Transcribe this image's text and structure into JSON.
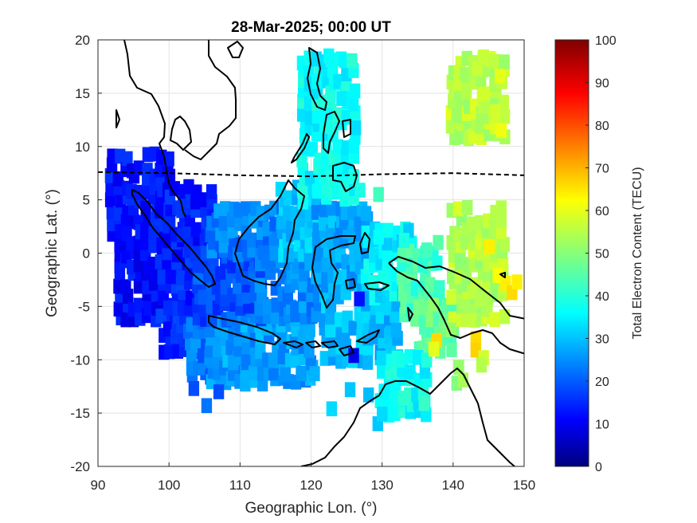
{
  "chart_data": {
    "type": "heatmap",
    "title": "28-Mar-2025; 00:00 UT",
    "xlabel": "Geographic Lon. (°)",
    "ylabel": "Geographic Lat. (°)",
    "xlim": [
      90,
      150
    ],
    "ylim": [
      -20,
      20
    ],
    "xticks": [
      "90",
      "100",
      "110",
      "120",
      "130",
      "140",
      "150"
    ],
    "yticks": [
      "20",
      "15",
      "10",
      "5",
      "0",
      "-5",
      "-10",
      "-15",
      "-20"
    ],
    "grid": true,
    "colorbar": {
      "label": "Total Electron Content (TECU)",
      "range": [
        0,
        100
      ],
      "ticks": [
        "100",
        "90",
        "80",
        "70",
        "60",
        "50",
        "40",
        "30",
        "20",
        "10",
        "0"
      ],
      "colormap": "jet"
    },
    "magnetic_equator": [
      [
        90,
        7.6
      ],
      [
        100,
        7.5
      ],
      [
        110,
        7.3
      ],
      [
        120,
        7.2
      ],
      [
        130,
        7.4
      ],
      [
        140,
        7.5
      ],
      [
        150,
        7.3
      ]
    ],
    "regions": [
      {
        "lon": [
          92,
          100
        ],
        "lat": [
          2,
          9.5
        ],
        "tec": 14
      },
      {
        "lon": [
          93,
          102
        ],
        "lat": [
          -6,
          2
        ],
        "tec": 13
      },
      {
        "lon": [
          99,
          106
        ],
        "lat": [
          -9,
          0
        ],
        "tec": 16
      },
      {
        "lon": [
          100,
          106
        ],
        "lat": [
          0,
          6
        ],
        "tec": 15
      },
      {
        "lon": [
          103,
          112
        ],
        "lat": [
          -11.5,
          -6
        ],
        "tec": 24
      },
      {
        "lon": [
          106,
          120
        ],
        "lat": [
          -12,
          -6
        ],
        "tec": 28
      },
      {
        "lon": [
          104,
          113
        ],
        "lat": [
          -6,
          0
        ],
        "tec": 20
      },
      {
        "lon": [
          106,
          116
        ],
        "lat": [
          0,
          4
        ],
        "tec": 25
      },
      {
        "lon": [
          113,
          121
        ],
        "lat": [
          -6,
          0
        ],
        "tec": 26
      },
      {
        "lon": [
          116,
          122
        ],
        "lat": [
          0,
          6
        ],
        "tec": 32
      },
      {
        "lon": [
          121,
          128
        ],
        "lat": [
          -4,
          4
        ],
        "tec": 29
      },
      {
        "lon": [
          122,
          132
        ],
        "lat": [
          -10,
          -5
        ],
        "tec": 31
      },
      {
        "lon": [
          128,
          134
        ],
        "lat": [
          -4,
          2
        ],
        "tec": 36
      },
      {
        "lon": [
          133,
          138
        ],
        "lat": [
          -6,
          0
        ],
        "tec": 44
      },
      {
        "lon": [
          135,
          140
        ],
        "lat": [
          -9,
          -5
        ],
        "tec": 48
      },
      {
        "lon": [
          130,
          136
        ],
        "lat": [
          -15,
          -10
        ],
        "tec": 38
      },
      {
        "lon": [
          119,
          126
        ],
        "lat": [
          5,
          18
        ],
        "tec": 38
      },
      {
        "lon": [
          140,
          147
        ],
        "lat": [
          -6,
          4
        ],
        "tec": 55
      },
      {
        "lon": [
          140,
          147
        ],
        "lat": [
          11,
          18
        ],
        "tec": 56
      }
    ],
    "points": [
      {
        "lon": 103.5,
        "lat": -12.7,
        "tec": 20
      },
      {
        "lon": 105.3,
        "lat": -14.3,
        "tec": 24
      },
      {
        "lon": 107.0,
        "lat": -13.0,
        "tec": 20
      },
      {
        "lon": 126.0,
        "lat": -9.6,
        "tec": 10
      },
      {
        "lon": 126.8,
        "lat": -4.3,
        "tec": 14
      },
      {
        "lon": 126.9,
        "lat": 5.9,
        "tec": 40
      },
      {
        "lon": 129.5,
        "lat": 5.5,
        "tec": 44
      },
      {
        "lon": 143.4,
        "lat": 17.3,
        "tec": 57
      },
      {
        "lon": 144.3,
        "lat": 18.4,
        "tec": 57
      },
      {
        "lon": 146.6,
        "lat": 16.6,
        "tec": 60
      },
      {
        "lon": 145.9,
        "lat": 13.3,
        "tec": 58
      },
      {
        "lon": 146.8,
        "lat": 11.5,
        "tec": 61
      },
      {
        "lon": 140.5,
        "lat": 12.9,
        "tec": 53
      },
      {
        "lon": 144.1,
        "lat": 14.9,
        "tec": 58
      },
      {
        "lon": 145.1,
        "lat": 0.6,
        "tec": 64
      },
      {
        "lon": 146.3,
        "lat": -2.1,
        "tec": 62
      },
      {
        "lon": 147.4,
        "lat": -2.8,
        "tec": 64
      },
      {
        "lon": 148.3,
        "lat": -3.7,
        "tec": 66
      },
      {
        "lon": 149.0,
        "lat": -2.7,
        "tec": 64
      },
      {
        "lon": 142.7,
        "lat": -3.6,
        "tec": 56
      },
      {
        "lon": 143.8,
        "lat": -4.4,
        "tec": 55
      },
      {
        "lon": 141.5,
        "lat": -5.0,
        "tec": 54
      },
      {
        "lon": 139.7,
        "lat": -7.2,
        "tec": 52
      },
      {
        "lon": 143.2,
        "lat": -8.0,
        "tec": 66
      },
      {
        "lon": 143.2,
        "lat": -9.1,
        "tec": 67
      },
      {
        "lon": 144.3,
        "lat": -9.8,
        "tec": 58
      },
      {
        "lon": 144.0,
        "lat": -10.5,
        "tec": 55
      },
      {
        "lon": 137.7,
        "lat": -8.2,
        "tec": 66
      },
      {
        "lon": 137.3,
        "lat": -9.0,
        "tec": 60
      },
      {
        "lon": 140.8,
        "lat": -10.7,
        "tec": 52
      },
      {
        "lon": 140.5,
        "lat": -12.2,
        "tec": 50
      },
      {
        "lon": 141.4,
        "lat": -11.9,
        "tec": 54
      },
      {
        "lon": 135.9,
        "lat": -14.1,
        "tec": 43
      },
      {
        "lon": 133.0,
        "lat": -13.6,
        "tec": 42
      },
      {
        "lon": 129.4,
        "lat": -16.0,
        "tec": 32
      },
      {
        "lon": 130.0,
        "lat": -15.1,
        "tec": 34
      },
      {
        "lon": 128.1,
        "lat": -13.3,
        "tec": 31
      },
      {
        "lon": 125.5,
        "lat": -12.8,
        "tec": 32
      },
      {
        "lon": 122.9,
        "lat": -14.6,
        "tec": 34
      },
      {
        "lon": 120.5,
        "lat": -11.3,
        "tec": 30
      },
      {
        "lon": 118.6,
        "lat": -11.3,
        "tec": 28
      },
      {
        "lon": 116.4,
        "lat": -11.4,
        "tec": 27
      },
      {
        "lon": 122.5,
        "lat": 18.5,
        "tec": 38
      },
      {
        "lon": 120.8,
        "lat": 16.1,
        "tec": 38
      },
      {
        "lon": 124.3,
        "lat": 14.5,
        "tec": 36
      },
      {
        "lon": 122.7,
        "lat": 7.1,
        "tec": 40
      },
      {
        "lon": 124.6,
        "lat": 6.0,
        "tec": 40
      },
      {
        "lon": 129.5,
        "lat": 1.5,
        "tec": 38
      },
      {
        "lon": 133.1,
        "lat": 1.2,
        "tec": 40
      },
      {
        "lon": 136.3,
        "lat": 0.3,
        "tec": 44
      },
      {
        "lon": 137.9,
        "lat": 1.0,
        "tec": 46
      }
    ]
  }
}
